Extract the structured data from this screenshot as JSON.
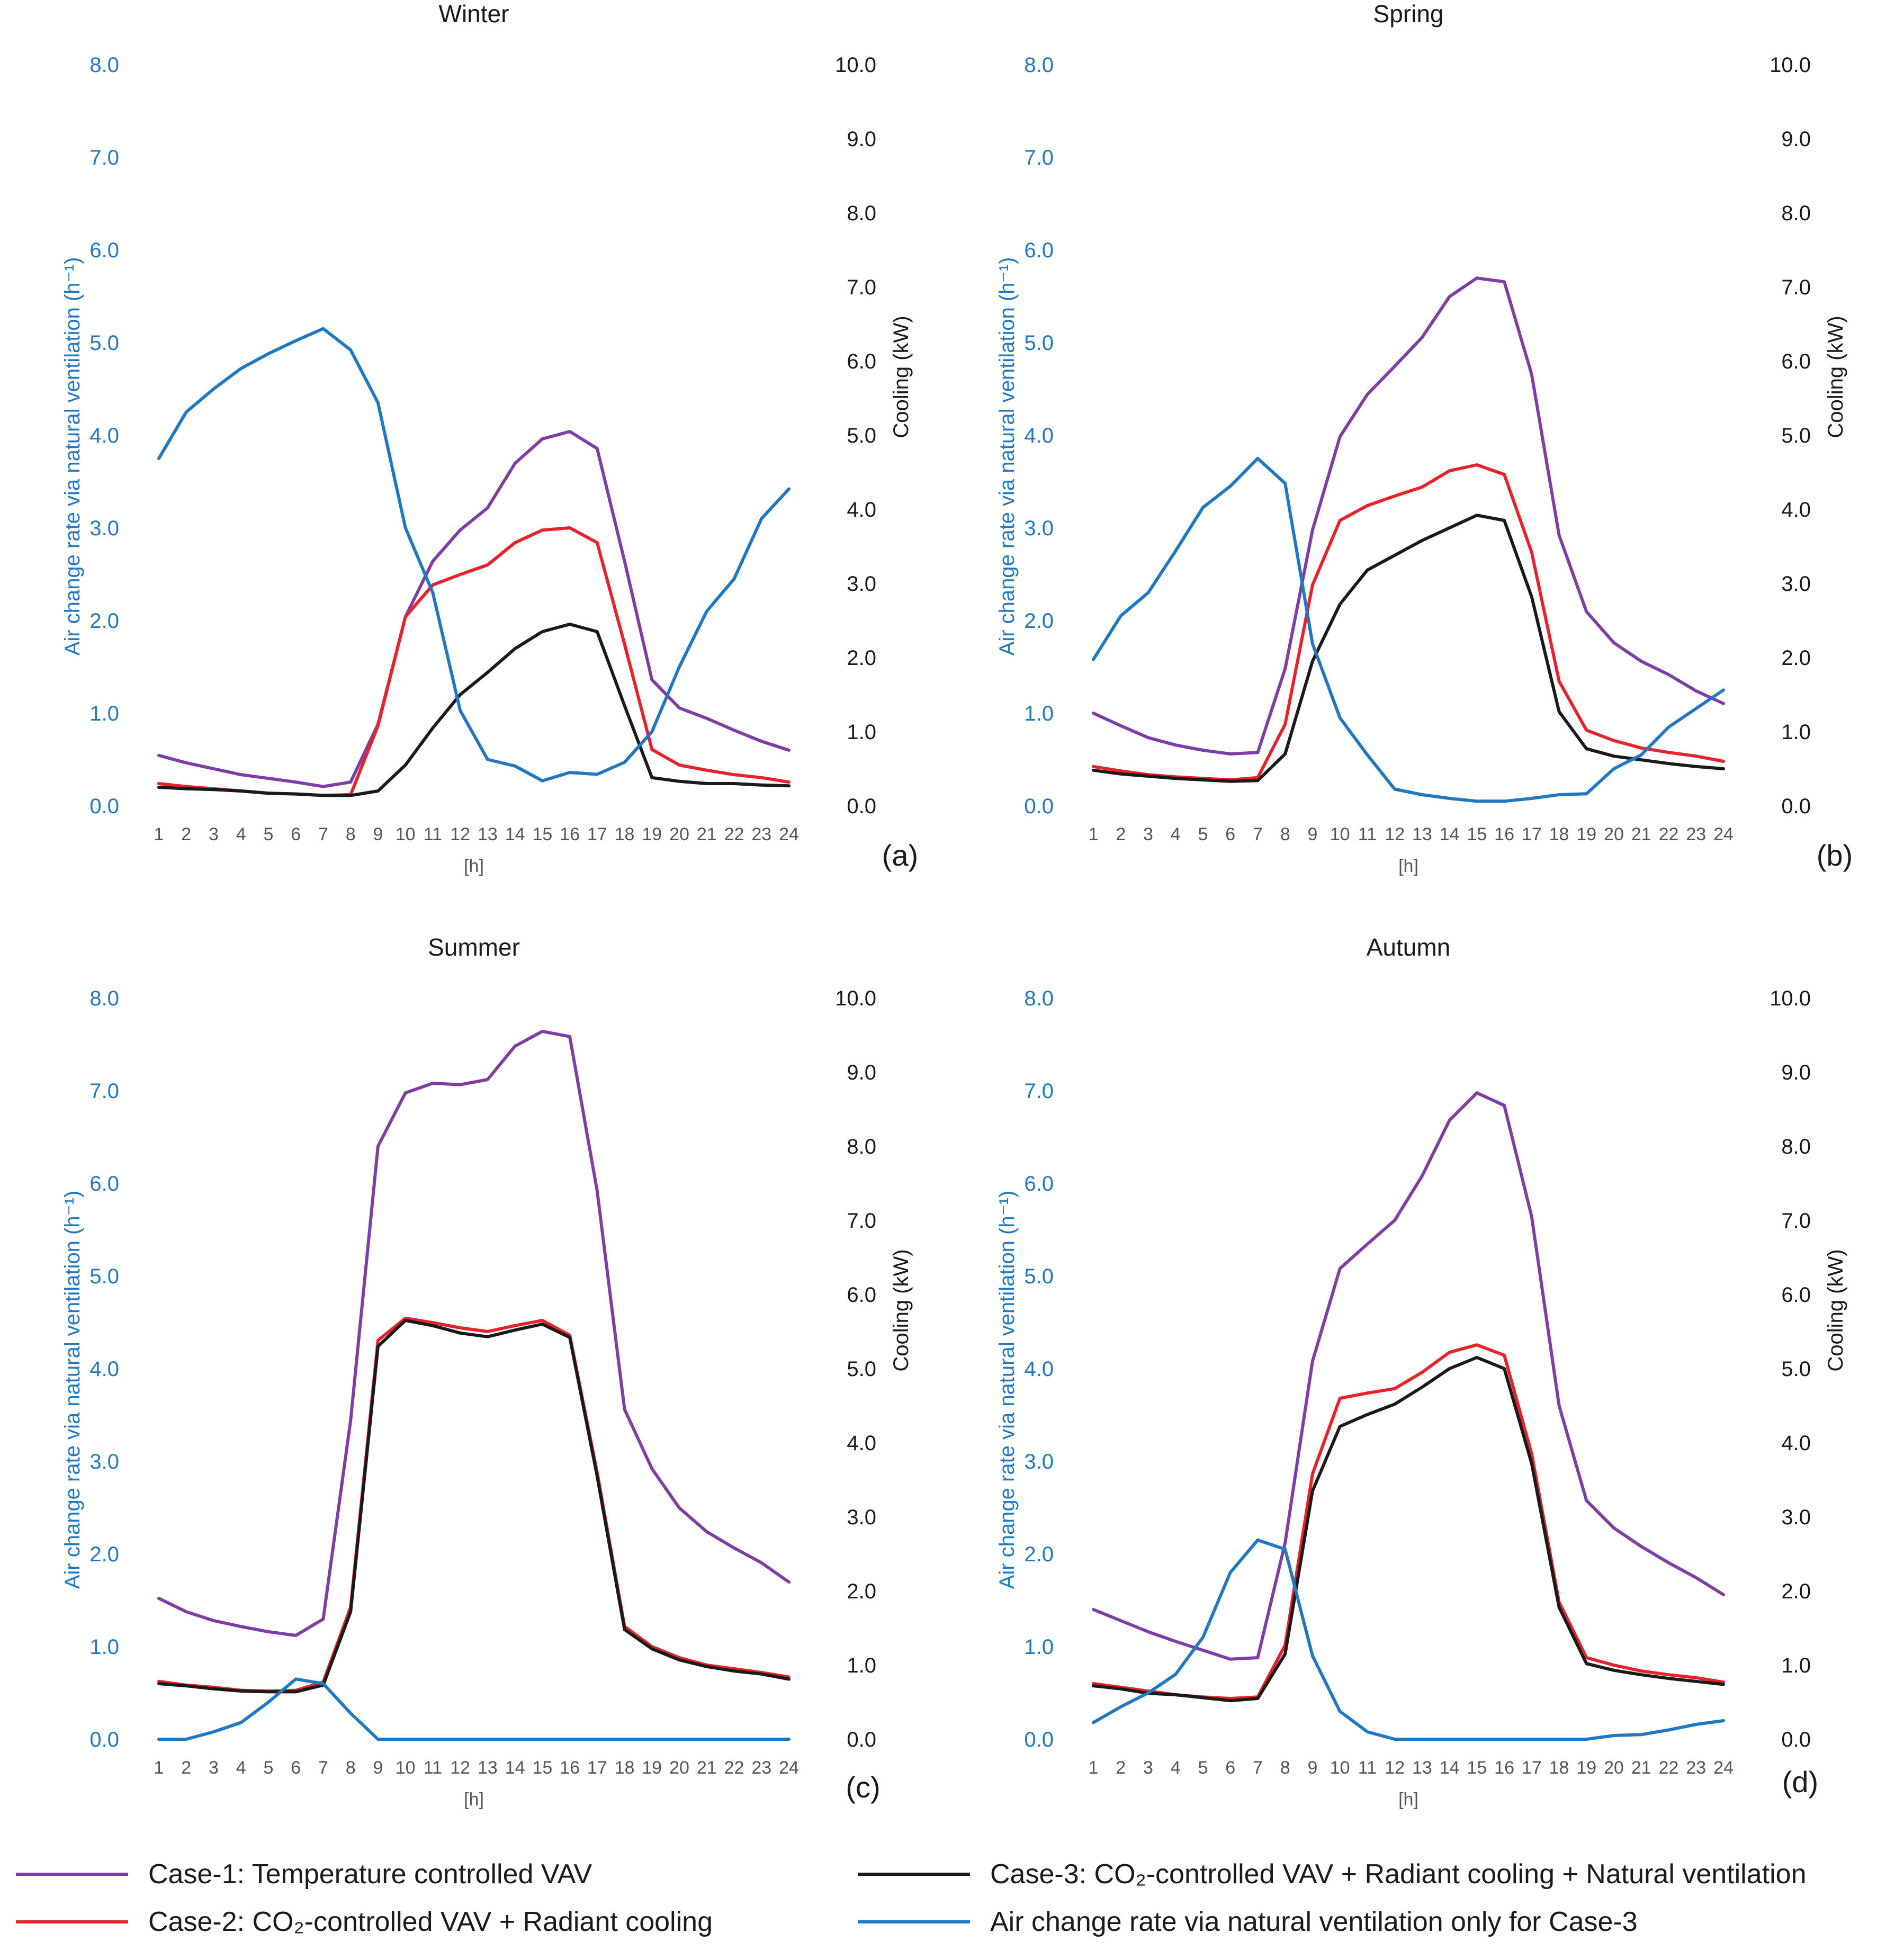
{
  "colors": {
    "case1": "#7e3ea6",
    "case2": "#e8212b",
    "case3": "#1a1a1a",
    "natural_ventilation": "#1f78c1",
    "left_axis": "#1f78c1",
    "right_axis": "#1a1a1a",
    "ticks": "#555555"
  },
  "legend": {
    "case1": "Case-1: Temperature controlled VAV",
    "case2": "Case-2: CO₂-controlled VAV + Radiant cooling",
    "case3": "Case-3: CO₂-controlled VAV + Radiant cooling + Natural ventilation",
    "nv": "Air change rate via natural ventilation only for Case-3"
  },
  "chart_data": [
    {
      "type": "line",
      "title": "Winter",
      "panel_label": "(a)",
      "xlabel": "[h]",
      "ylabel_left": "Air change rate via natural ventilation (h⁻¹)",
      "ylabel_right": "Cooling (kW)",
      "ylim_left": [
        0,
        8
      ],
      "ylim_right": [
        0,
        10
      ],
      "categories": [
        "1",
        "2",
        "3",
        "4",
        "5",
        "6",
        "7",
        "8",
        "9",
        "10",
        "11",
        "12",
        "13",
        "14",
        "15",
        "16",
        "17",
        "18",
        "19",
        "20",
        "21",
        "22",
        "23",
        "24"
      ],
      "yticks_left": [
        "0.0",
        "1.0",
        "2.0",
        "3.0",
        "4.0",
        "5.0",
        "6.0",
        "7.0",
        "8.0"
      ],
      "yticks_right": [
        "0.0",
        "1.0",
        "2.0",
        "3.0",
        "4.0",
        "5.0",
        "6.0",
        "7.0",
        "8.0",
        "9.0",
        "10.0"
      ],
      "series": [
        {
          "name": "Case-1: Temperature controlled VAV",
          "key": "case1",
          "axis": "right",
          "values": [
            0.68,
            0.58,
            0.5,
            0.42,
            0.37,
            0.32,
            0.26,
            0.32,
            1.1,
            2.55,
            3.3,
            3.72,
            4.02,
            4.62,
            4.95,
            5.05,
            4.82,
            3.3,
            1.7,
            1.32,
            1.18,
            1.02,
            0.87,
            0.75
          ]
        },
        {
          "name": "Case-2: CO₂-controlled VAV + Radiant cooling",
          "key": "case2",
          "axis": "right",
          "values": [
            0.3,
            0.26,
            0.23,
            0.2,
            0.17,
            0.16,
            0.14,
            0.15,
            1.08,
            2.55,
            2.98,
            3.12,
            3.25,
            3.55,
            3.72,
            3.75,
            3.55,
            2.18,
            0.76,
            0.55,
            0.48,
            0.42,
            0.38,
            0.32
          ]
        },
        {
          "name": "Case-3: CO₂-controlled VAV + Radiant cooling + Natural ventilation",
          "key": "case3",
          "axis": "right",
          "values": [
            0.25,
            0.23,
            0.22,
            0.2,
            0.17,
            0.16,
            0.14,
            0.14,
            0.2,
            0.55,
            1.05,
            1.5,
            1.8,
            2.12,
            2.35,
            2.45,
            2.35,
            1.35,
            0.38,
            0.33,
            0.3,
            0.3,
            0.28,
            0.27
          ]
        },
        {
          "name": "Air change rate via natural ventilation only for Case-3",
          "key": "natural_ventilation",
          "axis": "left",
          "values": [
            3.75,
            4.25,
            4.5,
            4.72,
            4.88,
            5.02,
            5.15,
            4.92,
            4.35,
            3.0,
            2.3,
            1.03,
            0.5,
            0.43,
            0.27,
            0.36,
            0.34,
            0.47,
            0.8,
            1.5,
            2.1,
            2.45,
            3.1,
            3.42
          ]
        }
      ]
    },
    {
      "type": "line",
      "title": "Spring",
      "panel_label": "(b)",
      "xlabel": "[h]",
      "ylabel_left": "Air change rate via natural ventilation (h⁻¹)",
      "ylabel_right": "Cooling (kW)",
      "ylim_left": [
        0,
        8
      ],
      "ylim_right": [
        0,
        10
      ],
      "categories": [
        "1",
        "2",
        "3",
        "4",
        "5",
        "6",
        "7",
        "8",
        "9",
        "10",
        "11",
        "12",
        "13",
        "14",
        "15",
        "16",
        "17",
        "18",
        "19",
        "20",
        "21",
        "22",
        "23",
        "24"
      ],
      "yticks_left": [
        "0.0",
        "1.0",
        "2.0",
        "3.0",
        "4.0",
        "5.0",
        "6.0",
        "7.0",
        "8.0"
      ],
      "yticks_right": [
        "0.0",
        "1.0",
        "2.0",
        "3.0",
        "4.0",
        "5.0",
        "6.0",
        "7.0",
        "8.0",
        "9.0",
        "10.0"
      ],
      "series": [
        {
          "name": "Case-1: Temperature controlled VAV",
          "key": "case1",
          "axis": "right",
          "values": [
            1.25,
            1.08,
            0.92,
            0.82,
            0.75,
            0.7,
            0.72,
            1.85,
            3.72,
            4.98,
            5.55,
            5.93,
            6.32,
            6.87,
            7.12,
            7.07,
            5.82,
            3.65,
            2.62,
            2.2,
            1.95,
            1.77,
            1.55,
            1.38
          ]
        },
        {
          "name": "Case-2: CO₂-controlled VAV + Radiant cooling",
          "key": "case2",
          "axis": "right",
          "values": [
            0.53,
            0.47,
            0.42,
            0.39,
            0.37,
            0.35,
            0.38,
            1.1,
            2.98,
            3.85,
            4.05,
            4.18,
            4.3,
            4.52,
            4.6,
            4.47,
            3.42,
            1.68,
            1.02,
            0.88,
            0.78,
            0.72,
            0.67,
            0.6
          ]
        },
        {
          "name": "Case-3: CO₂-controlled VAV + Radiant cooling + Natural ventilation",
          "key": "case3",
          "axis": "right",
          "values": [
            0.48,
            0.43,
            0.4,
            0.37,
            0.35,
            0.33,
            0.34,
            0.7,
            1.95,
            2.72,
            3.18,
            3.38,
            3.58,
            3.75,
            3.92,
            3.85,
            2.82,
            1.27,
            0.77,
            0.67,
            0.62,
            0.57,
            0.53,
            0.5
          ]
        },
        {
          "name": "Air change rate via natural ventilation only for Case-3",
          "key": "natural_ventilation",
          "axis": "left",
          "values": [
            1.58,
            2.05,
            2.3,
            2.75,
            3.22,
            3.45,
            3.75,
            3.48,
            1.75,
            0.95,
            0.55,
            0.18,
            0.12,
            0.08,
            0.05,
            0.05,
            0.08,
            0.12,
            0.13,
            0.4,
            0.55,
            0.85,
            1.05,
            1.25
          ]
        }
      ]
    },
    {
      "type": "line",
      "title": "Summer",
      "panel_label": "(c)",
      "xlabel": "[h]",
      "ylabel_left": "Air change rate via natural ventilation (h⁻¹)",
      "ylabel_right": "Cooling (kW)",
      "ylim_left": [
        0,
        8
      ],
      "ylim_right": [
        0,
        10
      ],
      "categories": [
        "1",
        "2",
        "3",
        "4",
        "5",
        "6",
        "7",
        "8",
        "9",
        "10",
        "11",
        "12",
        "13",
        "14",
        "15",
        "16",
        "17",
        "18",
        "19",
        "20",
        "21",
        "22",
        "23",
        "24"
      ],
      "yticks_left": [
        "0.0",
        "1.0",
        "2.0",
        "3.0",
        "4.0",
        "5.0",
        "6.0",
        "7.0",
        "8.0"
      ],
      "yticks_right": [
        "0.0",
        "1.0",
        "2.0",
        "3.0",
        "4.0",
        "5.0",
        "6.0",
        "7.0",
        "8.0",
        "9.0",
        "10.0"
      ],
      "series": [
        {
          "name": "Case-1: Temperature controlled VAV",
          "key": "case1",
          "axis": "right",
          "values": [
            1.9,
            1.72,
            1.6,
            1.52,
            1.45,
            1.4,
            1.62,
            4.3,
            8.0,
            8.72,
            8.85,
            8.83,
            8.9,
            9.35,
            9.55,
            9.48,
            7.4,
            4.45,
            3.65,
            3.12,
            2.8,
            2.58,
            2.38,
            2.12
          ]
        },
        {
          "name": "Case-2: CO₂-controlled VAV + Radiant cooling",
          "key": "case2",
          "axis": "right",
          "values": [
            0.78,
            0.73,
            0.7,
            0.66,
            0.65,
            0.66,
            0.77,
            1.78,
            5.38,
            5.68,
            5.62,
            5.55,
            5.5,
            5.58,
            5.65,
            5.45,
            3.6,
            1.52,
            1.25,
            1.1,
            1.0,
            0.95,
            0.9,
            0.84
          ]
        },
        {
          "name": "Case-3: CO₂-controlled VAV + Radiant cooling + Natural ventilation",
          "key": "case3",
          "axis": "right",
          "values": [
            0.75,
            0.72,
            0.68,
            0.65,
            0.64,
            0.64,
            0.73,
            1.72,
            5.3,
            5.65,
            5.58,
            5.48,
            5.43,
            5.52,
            5.6,
            5.42,
            3.55,
            1.48,
            1.22,
            1.07,
            0.98,
            0.92,
            0.88,
            0.81
          ]
        },
        {
          "name": "Air change rate via natural ventilation only for Case-3",
          "key": "natural_ventilation",
          "axis": "left",
          "values": [
            0.0,
            0.0,
            0.08,
            0.18,
            0.4,
            0.65,
            0.6,
            0.28,
            0.0,
            0.0,
            0.0,
            0.0,
            0.0,
            0.0,
            0.0,
            0.0,
            0.0,
            0.0,
            0.0,
            0.0,
            0.0,
            0.0,
            0.0,
            0.0
          ]
        }
      ]
    },
    {
      "type": "line",
      "title": "Autumn",
      "panel_label": "(d)",
      "xlabel": "[h]",
      "ylabel_left": "Air change rate via natural ventilation (h⁻¹)",
      "ylabel_right": "Cooling (kW)",
      "ylim_left": [
        0,
        8
      ],
      "ylim_right": [
        0,
        10
      ],
      "categories": [
        "1",
        "2",
        "3",
        "4",
        "5",
        "6",
        "7",
        "8",
        "9",
        "10",
        "11",
        "12",
        "13",
        "14",
        "15",
        "16",
        "17",
        "18",
        "19",
        "20",
        "21",
        "22",
        "23",
        "24"
      ],
      "yticks_left": [
        "0.0",
        "1.0",
        "2.0",
        "3.0",
        "4.0",
        "5.0",
        "6.0",
        "7.0",
        "8.0"
      ],
      "yticks_right": [
        "0.0",
        "1.0",
        "2.0",
        "3.0",
        "4.0",
        "5.0",
        "6.0",
        "7.0",
        "8.0",
        "9.0",
        "10.0"
      ],
      "series": [
        {
          "name": "Case-1: Temperature controlled VAV",
          "key": "case1",
          "axis": "right",
          "values": [
            1.75,
            1.6,
            1.45,
            1.32,
            1.2,
            1.08,
            1.1,
            2.65,
            5.1,
            6.35,
            6.68,
            7.0,
            7.6,
            8.35,
            8.72,
            8.55,
            7.05,
            4.5,
            3.22,
            2.85,
            2.6,
            2.38,
            2.18,
            1.95
          ]
        },
        {
          "name": "Case-2: CO₂-controlled VAV + Radiant cooling",
          "key": "case2",
          "axis": "right",
          "values": [
            0.75,
            0.7,
            0.65,
            0.6,
            0.57,
            0.55,
            0.57,
            1.27,
            3.58,
            4.6,
            4.67,
            4.73,
            4.95,
            5.22,
            5.32,
            5.18,
            3.85,
            1.85,
            1.1,
            1.0,
            0.92,
            0.87,
            0.83,
            0.77
          ]
        },
        {
          "name": "Case-3: CO₂-controlled VAV + Radiant cooling + Natural ventilation",
          "key": "case3",
          "axis": "right",
          "values": [
            0.72,
            0.68,
            0.62,
            0.6,
            0.56,
            0.52,
            0.55,
            1.15,
            3.35,
            4.22,
            4.38,
            4.52,
            4.75,
            5.0,
            5.15,
            5.0,
            3.72,
            1.78,
            1.02,
            0.93,
            0.87,
            0.82,
            0.78,
            0.74
          ]
        },
        {
          "name": "Air change rate via natural ventilation only for Case-3",
          "key": "natural_ventilation",
          "axis": "left",
          "values": [
            0.18,
            0.35,
            0.5,
            0.7,
            1.1,
            1.8,
            2.15,
            2.05,
            0.9,
            0.3,
            0.08,
            0.0,
            0.0,
            0.0,
            0.0,
            0.0,
            0.0,
            0.0,
            0.0,
            0.04,
            0.05,
            0.1,
            0.16,
            0.2
          ]
        }
      ]
    }
  ]
}
